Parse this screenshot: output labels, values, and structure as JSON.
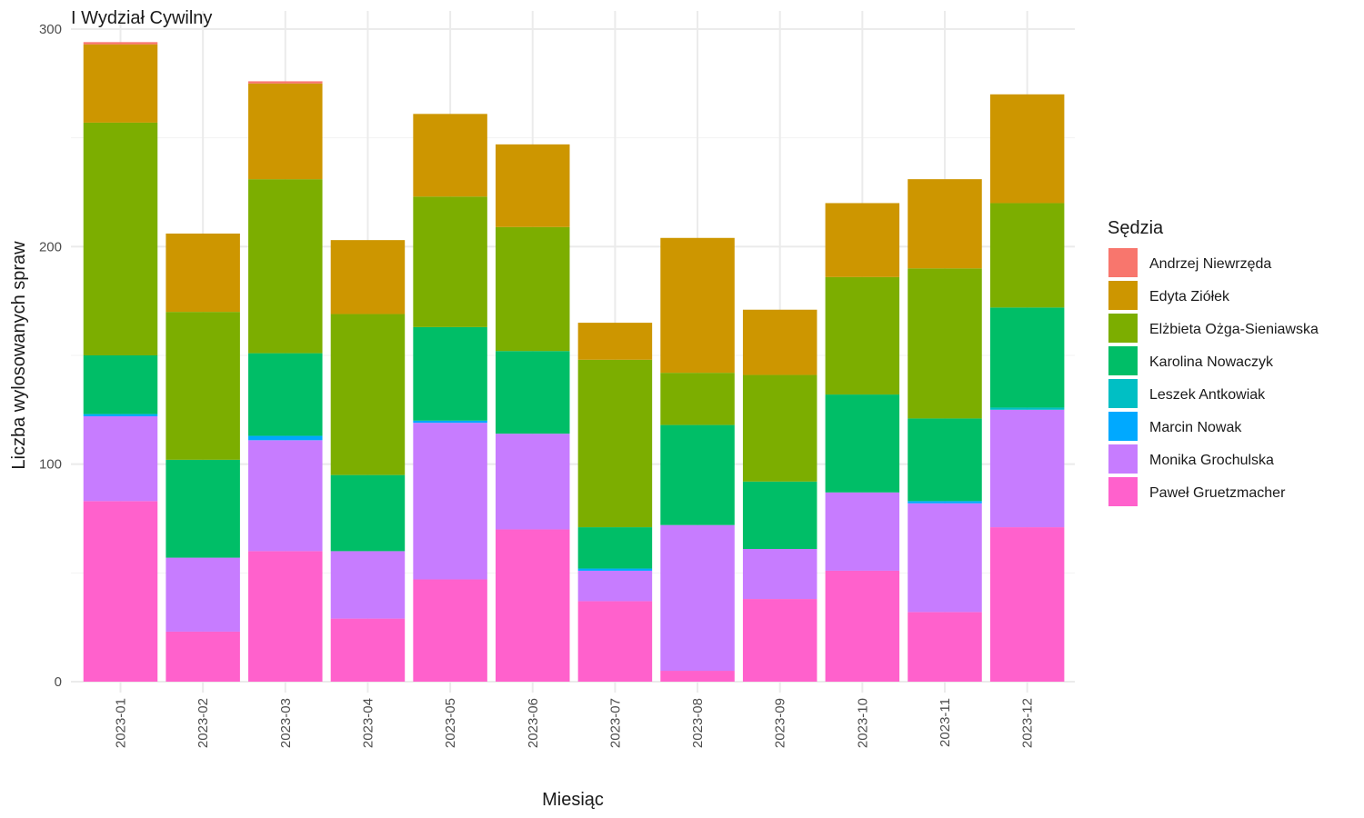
{
  "chart_data": {
    "type": "bar",
    "stacked": true,
    "title": "I Wydział Cywilny",
    "xlabel": "Miesiąc",
    "ylabel": "Liczba wylosowanych spraw",
    "ylim": [
      0,
      300
    ],
    "yticks": [
      0,
      100,
      200,
      300
    ],
    "grid": true,
    "legend_title": "Sędzia",
    "legend_position": "right",
    "categories": [
      "2023-01",
      "2023-02",
      "2023-03",
      "2023-04",
      "2023-05",
      "2023-06",
      "2023-07",
      "2023-08",
      "2023-09",
      "2023-10",
      "2023-11",
      "2023-12"
    ],
    "series": [
      {
        "name": "Paweł Gruetzmacher",
        "color": "#FF61CC",
        "values": [
          83,
          23,
          60,
          29,
          47,
          70,
          37,
          5,
          38,
          51,
          32,
          71
        ]
      },
      {
        "name": "Monika Grochulska",
        "color": "#C77CFF",
        "values": [
          39,
          34,
          51,
          31,
          72,
          44,
          14,
          67,
          23,
          36,
          50,
          54
        ]
      },
      {
        "name": "Marcin Nowak",
        "color": "#00A9FF",
        "values": [
          1,
          0,
          2,
          0,
          1,
          0,
          1,
          0,
          0,
          0,
          1,
          0
        ]
      },
      {
        "name": "Leszek Antkowiak",
        "color": "#00BFC4",
        "values": [
          0,
          0,
          0,
          0,
          0,
          0,
          0,
          0,
          0,
          0,
          0,
          1
        ]
      },
      {
        "name": "Karolina Nowaczyk",
        "color": "#00BE67",
        "values": [
          27,
          45,
          38,
          35,
          43,
          38,
          19,
          46,
          31,
          45,
          38,
          46
        ]
      },
      {
        "name": "Elżbieta Ożga-Sieniawska",
        "color": "#7CAE00",
        "values": [
          107,
          68,
          80,
          74,
          60,
          57,
          77,
          24,
          49,
          54,
          69,
          48
        ]
      },
      {
        "name": "Edyta Ziółek",
        "color": "#CD9600",
        "values": [
          36,
          36,
          44,
          34,
          38,
          38,
          17,
          62,
          30,
          34,
          41,
          50
        ]
      },
      {
        "name": "Andrzej Niewrzęda",
        "color": "#F8766D",
        "values": [
          1,
          0,
          1,
          0,
          0,
          0,
          0,
          0,
          0,
          0,
          0,
          0
        ]
      }
    ],
    "legend_order": [
      "Andrzej Niewrzęda",
      "Edyta Ziółek",
      "Elżbieta Ożga-Sieniawska",
      "Karolina Nowaczyk",
      "Leszek Antkowiak",
      "Marcin Nowak",
      "Monika Grochulska",
      "Paweł Gruetzmacher"
    ]
  }
}
